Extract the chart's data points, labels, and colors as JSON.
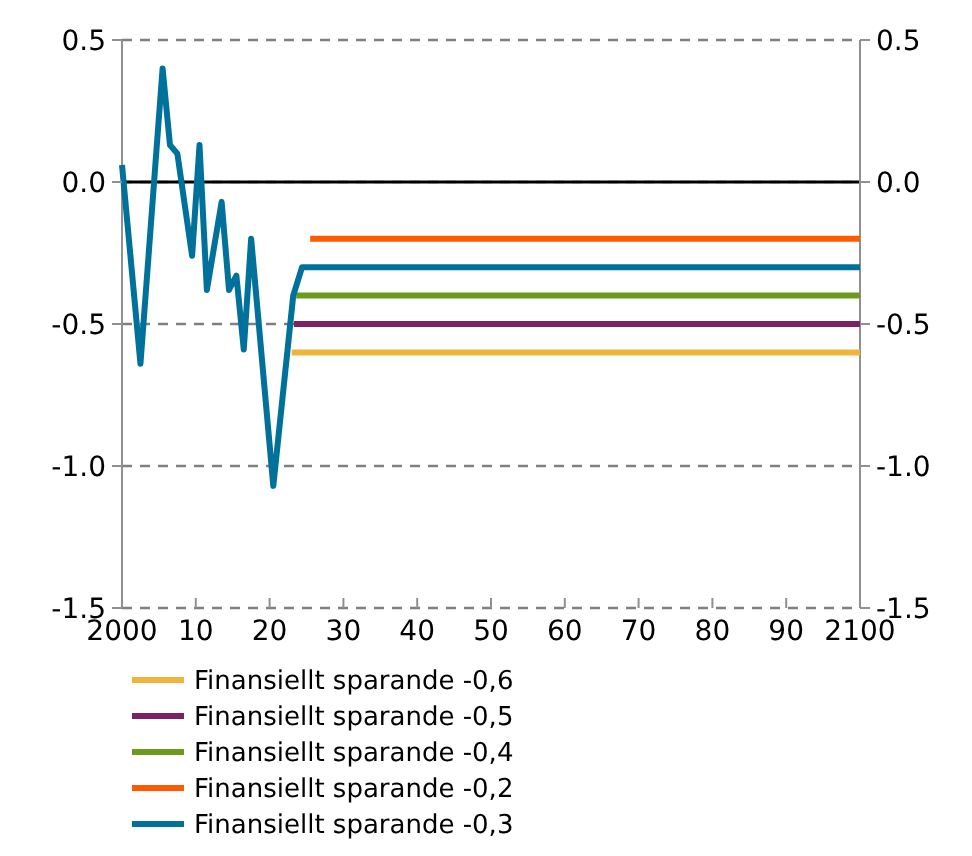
{
  "chart_data": {
    "type": "line",
    "xlim": [
      2000,
      2100
    ],
    "xticks": [
      2000,
      {
        "value": 2010,
        "label": "10"
      },
      {
        "value": 2020,
        "label": "20"
      },
      {
        "value": 2030,
        "label": "30"
      },
      {
        "value": 2040,
        "label": "40"
      },
      {
        "value": 2050,
        "label": "50"
      },
      {
        "value": 2060,
        "label": "60"
      },
      {
        "value": 2070,
        "label": "70"
      },
      {
        "value": 2080,
        "label": "80"
      },
      {
        "value": 2090,
        "label": "90"
      },
      2100
    ],
    "ylim": [
      -1.5,
      0.5
    ],
    "yticks": [
      {
        "value": -1.5,
        "label": "-1.5"
      },
      {
        "value": -1.0,
        "label": "-1.0"
      },
      {
        "value": -0.5,
        "label": "-0.5"
      },
      {
        "value": 0,
        "label": "0.0"
      },
      {
        "value": 0.5,
        "label": "0.5"
      }
    ],
    "y2lim": [
      -1.5,
      0.5
    ],
    "y2ticks": [
      {
        "value": -1.5,
        "label": "-1.5"
      },
      {
        "value": -1.0,
        "label": "-1.0"
      },
      {
        "value": -0.5,
        "label": "-0.5"
      },
      {
        "value": 0,
        "label": "0.0"
      },
      {
        "value": 0.5,
        "label": "0.5"
      }
    ],
    "grid": "y",
    "legend": "bottom",
    "marker": "none",
    "line_style": "solid",
    "ref_lines": [
      {
        "axis": "y",
        "value": 0,
        "color": "#000000",
        "line_style": "solid"
      }
    ],
    "series": [
      {
        "name": "Finansiellt sparande -0,6",
        "color": "#f0b33c",
        "x": [
          2023,
          2100
        ],
        "values": [
          -0.6,
          -0.6
        ]
      },
      {
        "name": "Finansiellt sparande -0,5",
        "color": "#7b2266",
        "x": [
          2023.3,
          2100
        ],
        "values": [
          -0.5,
          -0.5
        ]
      },
      {
        "name": "Finansiellt sparande -0,4",
        "color": "#6b9a1e",
        "x": [
          2023.6,
          2100
        ],
        "values": [
          -0.4,
          -0.4
        ]
      },
      {
        "name": "Finansiellt sparande -0,2",
        "color": "#ff5a00",
        "x": [
          2025.5,
          2100
        ],
        "values": [
          -0.2,
          -0.2
        ]
      },
      {
        "name": "Finansiellt sparande -0,3",
        "color": "#00719a",
        "x": [
          2000,
          2002.5,
          2005.5,
          2006.5,
          2007.5,
          2009.5,
          2010.5,
          2011.5,
          2013.5,
          2014.5,
          2015.5,
          2016.5,
          2017.5,
          2020.5,
          2023.2,
          2024.4,
          2100
        ],
        "values": [
          0.06,
          -0.64,
          0.4,
          0.13,
          0.1,
          -0.26,
          0.13,
          -0.38,
          -0.07,
          -0.38,
          -0.33,
          -0.59,
          -0.2,
          -1.07,
          -0.4,
          -0.3,
          -0.3
        ]
      }
    ]
  }
}
